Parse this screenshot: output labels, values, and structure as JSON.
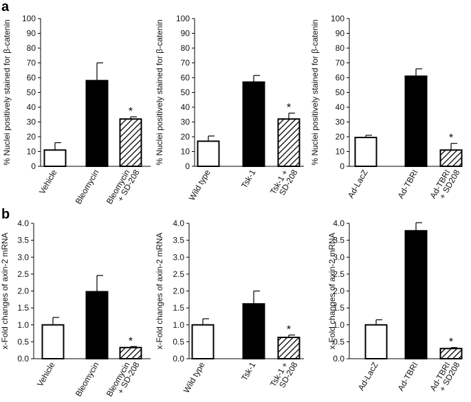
{
  "panel_letters": [
    "a",
    "b"
  ],
  "chart_data": [
    {
      "type": "bar",
      "row": "a",
      "ylabel": "% Nuclei positively stained for β-catenin",
      "ylim": [
        0,
        100
      ],
      "yticks": [
        "0",
        "10",
        "20",
        "30",
        "40",
        "50",
        "60",
        "70",
        "80",
        "90",
        "100"
      ],
      "categories": [
        [
          "Vehicle"
        ],
        [
          "Bleomycin"
        ],
        [
          "Bleomycin",
          "+ SD-208"
        ]
      ],
      "values": [
        11,
        58,
        32
      ],
      "errors": [
        5,
        12,
        1.5
      ],
      "fills": [
        "white",
        "black",
        "hatch"
      ],
      "markers": [
        "",
        "",
        "*"
      ]
    },
    {
      "type": "bar",
      "row": "a",
      "ylabel": "% Nuclei positively stained for β-catenin",
      "ylim": [
        0,
        100
      ],
      "yticks": [
        "0",
        "10",
        "20",
        "30",
        "40",
        "50",
        "60",
        "70",
        "80",
        "90",
        "100"
      ],
      "categories": [
        [
          "Wild type"
        ],
        [
          "Tsk-1"
        ],
        [
          "Tsk-1 +",
          "SD-208"
        ]
      ],
      "values": [
        17,
        57,
        32
      ],
      "errors": [
        3.5,
        4.5,
        4
      ],
      "fills": [
        "white",
        "black",
        "hatch"
      ],
      "markers": [
        "",
        "",
        "*"
      ]
    },
    {
      "type": "bar",
      "row": "a",
      "ylabel": "% Nuclei positively stained for β-catenin",
      "ylim": [
        0,
        100
      ],
      "yticks": [
        "0",
        "10",
        "20",
        "30",
        "40",
        "50",
        "60",
        "70",
        "80",
        "90",
        "100"
      ],
      "categories": [
        [
          "Ad-LacZ"
        ],
        [
          "Ad-TBRI"
        ],
        [
          "Ad-TBRI",
          "+ SD208"
        ]
      ],
      "values": [
        19.5,
        61,
        11
      ],
      "errors": [
        1.5,
        5,
        4.5
      ],
      "fills": [
        "white",
        "black",
        "hatch"
      ],
      "markers": [
        "",
        "",
        "*"
      ]
    },
    {
      "type": "bar",
      "row": "b",
      "ylabel": "x-Fold changes of axin-2 mRNA",
      "ylim": [
        0,
        4
      ],
      "yticks": [
        "0.0",
        "0.5",
        "1.0",
        "1.5",
        "2.0",
        "2.5",
        "3.0",
        "3.5",
        "4.0"
      ],
      "categories": [
        [
          "Vehicle"
        ],
        [
          "Bleomycin"
        ],
        [
          "Bleomycin",
          "+ SD-208"
        ]
      ],
      "values": [
        1.0,
        1.98,
        0.33
      ],
      "errors": [
        0.22,
        0.48,
        0.03
      ],
      "fills": [
        "white",
        "black",
        "hatch"
      ],
      "markers": [
        "",
        "",
        "*"
      ]
    },
    {
      "type": "bar",
      "row": "b",
      "ylabel": "x-Fold changes of axin-2 mRNA",
      "ylim": [
        0,
        4
      ],
      "yticks": [
        "0.0",
        "0.5",
        "1.0",
        "1.5",
        "2.0",
        "2.5",
        "3.0",
        "3.5",
        "4.0"
      ],
      "categories": [
        [
          "Wild type"
        ],
        [
          "Tsk-1"
        ],
        [
          "Tsk-1 +",
          "SD-208"
        ]
      ],
      "values": [
        1.0,
        1.62,
        0.63
      ],
      "errors": [
        0.18,
        0.38,
        0.07
      ],
      "fills": [
        "white",
        "black",
        "hatch"
      ],
      "markers": [
        "",
        "",
        "*"
      ]
    },
    {
      "type": "bar",
      "row": "b",
      "ylabel": "x-Fold changes of axin-2 mRNA",
      "ylim": [
        0,
        4
      ],
      "yticks": [
        "0.0",
        "0.5",
        "1.0",
        "1.5",
        "2.0",
        "2.5",
        "3.0",
        "3.5",
        "4.0"
      ],
      "categories": [
        [
          "Ad-LacZ"
        ],
        [
          "Ad-TBRI"
        ],
        [
          "Ad-TBRI",
          "+ SD208"
        ]
      ],
      "values": [
        1.0,
        3.78,
        0.3
      ],
      "errors": [
        0.15,
        0.24,
        0.03
      ],
      "fills": [
        "white",
        "black",
        "hatch"
      ],
      "markers": [
        "",
        "",
        "*"
      ]
    }
  ]
}
